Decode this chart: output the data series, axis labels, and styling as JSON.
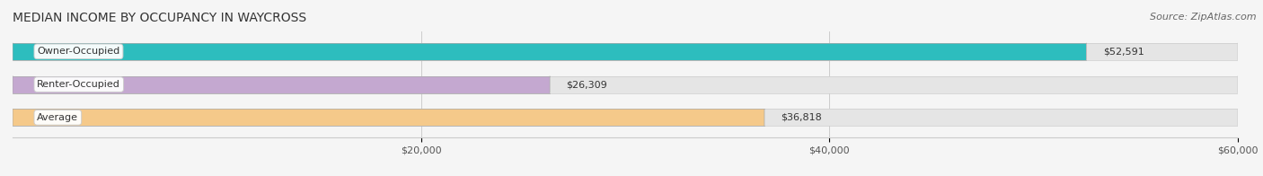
{
  "title": "MEDIAN INCOME BY OCCUPANCY IN WAYCROSS",
  "source": "Source: ZipAtlas.com",
  "categories": [
    "Owner-Occupied",
    "Renter-Occupied",
    "Average"
  ],
  "values": [
    52591,
    26309,
    36818
  ],
  "bar_colors": [
    "#2dbdbe",
    "#c4a8d0",
    "#f5c98a"
  ],
  "bar_labels": [
    "$52,591",
    "$26,309",
    "$36,818"
  ],
  "xlim": [
    0,
    60000
  ],
  "xticks": [
    20000,
    40000,
    60000
  ],
  "xticklabels": [
    "$20,000",
    "$40,000",
    "$60,000"
  ],
  "background_color": "#f5f5f5",
  "bar_background_color": "#e5e5e5",
  "title_fontsize": 10,
  "source_fontsize": 8,
  "label_fontsize": 8,
  "value_fontsize": 8,
  "bar_height": 0.52
}
